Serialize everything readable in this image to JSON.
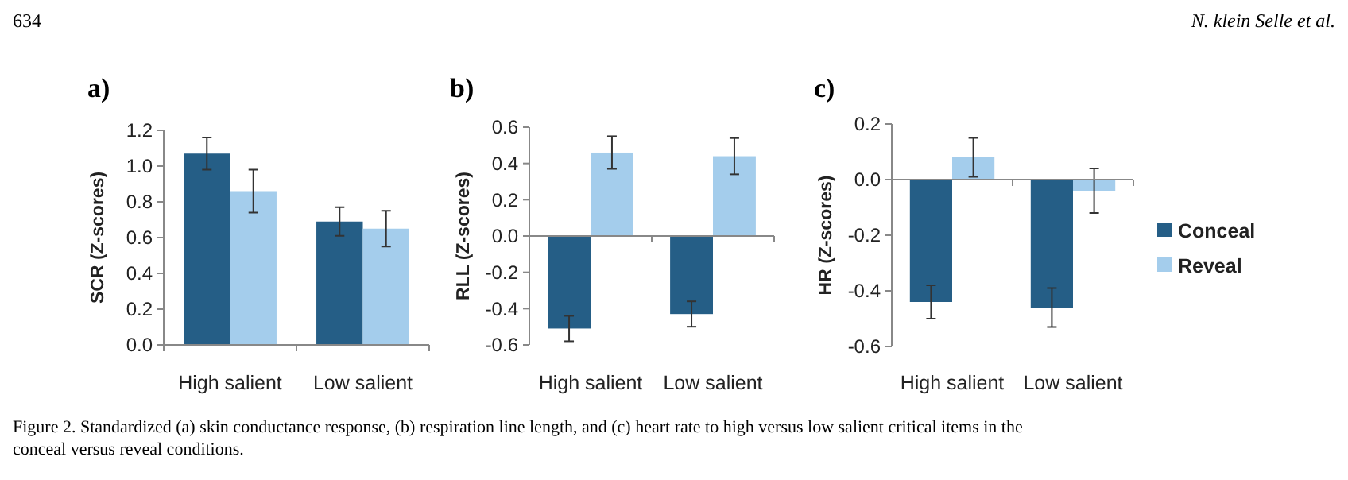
{
  "chart_data": [
    {
      "type": "bar",
      "title": "a)",
      "ylabel": "SCR (Z-scores)",
      "categories": [
        "High salient",
        "Low salient"
      ],
      "ylim": [
        0,
        1.2
      ],
      "yticks": [
        {
          "value": 0,
          "label": "0.0"
        },
        {
          "value": 0.2,
          "label": "0.2"
        },
        {
          "value": 0.4,
          "label": "0.4"
        },
        {
          "value": 0.6,
          "label": "0.6"
        },
        {
          "value": 0.8,
          "label": "0.8"
        },
        {
          "value": 1,
          "label": "1.0"
        },
        {
          "value": 1.2,
          "label": "1.2"
        }
      ],
      "legend": false,
      "annotations": [
        "634",
        "N. klein Selle et al.",
        "Figure 2. Standardized (a) skin conductance response, (b) respiration line length, and (c) heart rate to high versus low salient critical items in the conceal versus reveal conditions."
      ],
      "series": [
        {
          "color": "#255e86",
          "values": [
            1.07,
            0.69
          ],
          "errors": [
            0.09,
            0.08
          ]
        },
        {
          "color": "#a4cdec",
          "values": [
            0.86,
            0.65
          ],
          "errors": [
            0.12,
            0.1
          ]
        }
      ]
    },
    {
      "type": "bar",
      "title": "b)",
      "ylabel": "RLL (Z-scores)",
      "categories": [
        "High salient",
        "Low salient"
      ],
      "ylim": [
        -0.6,
        0.6
      ],
      "yticks": [
        {
          "value": -0.6,
          "label": "-0.6"
        },
        {
          "value": -0.4,
          "label": "-0.4"
        },
        {
          "value": -0.2,
          "label": "-0.2"
        },
        {
          "value": 0,
          "label": "0.0"
        },
        {
          "value": 0.2,
          "label": "0.2"
        },
        {
          "value": 0.4,
          "label": "0.4"
        },
        {
          "value": 0.6,
          "label": "0.6"
        }
      ],
      "legend": false,
      "series": [
        {
          "color": "#255e86",
          "values": [
            -0.51,
            -0.43
          ],
          "errors": [
            0.07,
            0.07
          ]
        },
        {
          "color": "#a4cdec",
          "values": [
            0.46,
            0.44
          ],
          "errors": [
            0.09,
            0.1
          ]
        }
      ]
    },
    {
      "type": "bar",
      "title": "c)",
      "ylabel": "HR (Z-scores)",
      "categories": [
        "High salient",
        "Low salient"
      ],
      "ylim": [
        -0.6,
        0.2
      ],
      "yticks": [
        {
          "value": -0.6,
          "label": "-0.6"
        },
        {
          "value": -0.4,
          "label": "-0.4"
        },
        {
          "value": -0.2,
          "label": "-0.2"
        },
        {
          "value": 0,
          "label": "0.0"
        },
        {
          "value": 0.2,
          "label": "0.2"
        }
      ],
      "legend": "right",
      "series": [
        {
          "name": "Conceal",
          "color": "#255e86",
          "values": [
            -0.44,
            -0.46
          ],
          "errors": [
            0.06,
            0.07
          ]
        },
        {
          "name": "Reveal",
          "color": "#a4cdec",
          "values": [
            0.08,
            -0.04
          ],
          "errors": [
            0.07,
            0.08
          ]
        }
      ]
    }
  ]
}
